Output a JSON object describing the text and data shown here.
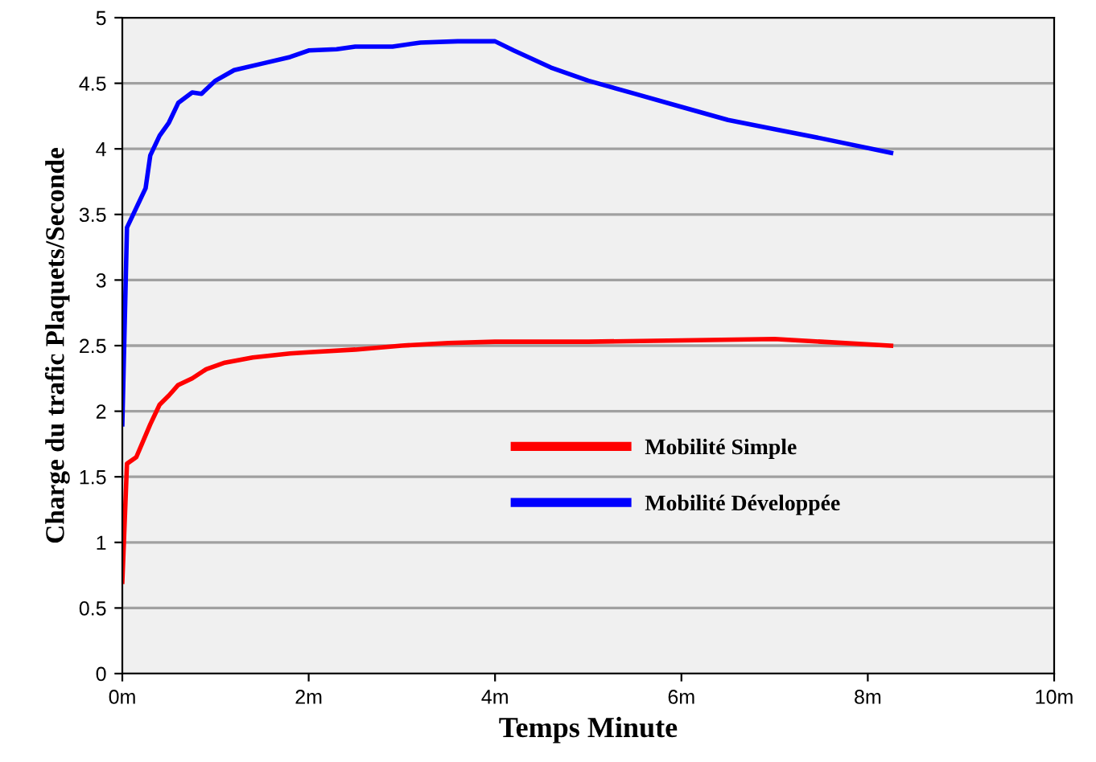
{
  "chart_data": {
    "type": "line",
    "xlabel": "Temps Minute",
    "ylabel": "Charge du trafic Plaquets/Seconde",
    "xlim": [
      0,
      10
    ],
    "xticks": [
      {
        "value": 0,
        "label": "0m"
      },
      {
        "value": 2,
        "label": "2m"
      },
      {
        "value": 4,
        "label": "4m"
      },
      {
        "value": 6,
        "label": "6m"
      },
      {
        "value": 8,
        "label": "8m"
      },
      {
        "value": 10,
        "label": "10m"
      }
    ],
    "ylim": [
      0,
      5
    ],
    "yticks": [
      0,
      0.5,
      1,
      1.5,
      2,
      2.5,
      3,
      3.5,
      4,
      4.5,
      5
    ],
    "grid": "y",
    "legend": "bottom",
    "marker": "none",
    "line_style": "solid",
    "series": [
      {
        "name": "Mobilité Simple",
        "color": "#ff0000",
        "x": [
          0,
          0.05,
          0.15,
          0.3,
          0.4,
          0.5,
          0.6,
          0.75,
          0.9,
          1.1,
          1.4,
          1.8,
          2.0,
          2.5,
          3.0,
          3.5,
          4.0,
          5.0,
          6.0,
          7.0,
          7.5,
          8.25
        ],
        "values": [
          0.7,
          1.6,
          1.65,
          1.9,
          2.05,
          2.12,
          2.2,
          2.25,
          2.32,
          2.37,
          2.41,
          2.44,
          2.45,
          2.47,
          2.5,
          2.52,
          2.53,
          2.53,
          2.54,
          2.55,
          2.53,
          2.5
        ]
      },
      {
        "name": "Mobilité Développée",
        "color": "#0000ff",
        "x": [
          0,
          0.05,
          0.15,
          0.25,
          0.3,
          0.4,
          0.5,
          0.6,
          0.75,
          0.85,
          1.0,
          1.2,
          1.5,
          1.8,
          2.0,
          2.3,
          2.5,
          2.9,
          3.2,
          3.6,
          4.0,
          4.2,
          4.6,
          5.0,
          5.5,
          6.0,
          6.5,
          7.0,
          7.5,
          8.25
        ],
        "values": [
          1.9,
          3.4,
          3.55,
          3.7,
          3.95,
          4.1,
          4.2,
          4.35,
          4.43,
          4.42,
          4.52,
          4.6,
          4.65,
          4.7,
          4.75,
          4.76,
          4.78,
          4.78,
          4.81,
          4.82,
          4.82,
          4.75,
          4.62,
          4.52,
          4.42,
          4.32,
          4.22,
          4.15,
          4.08,
          3.97
        ]
      }
    ]
  }
}
